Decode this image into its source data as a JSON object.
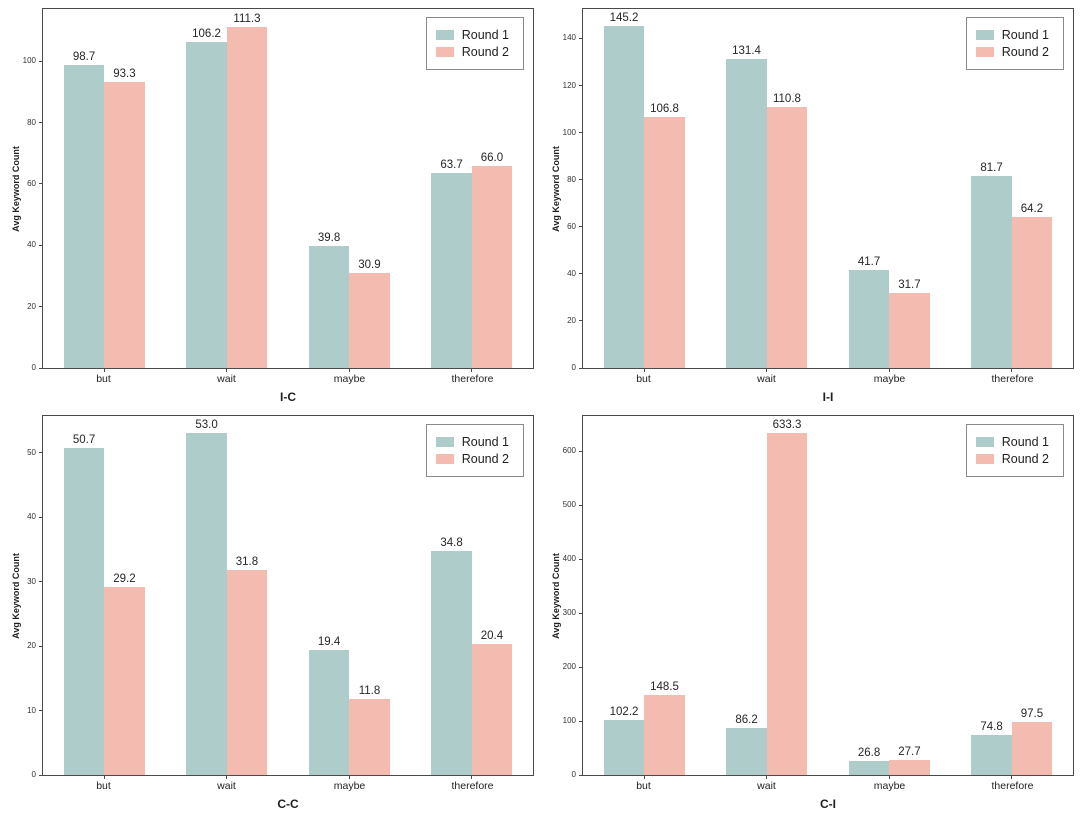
{
  "figure": {
    "type": "grouped-bar-grid",
    "rows": 2,
    "cols": 2
  },
  "colors": {
    "round1": "#aeccc9",
    "round2": "#f4bcb1",
    "spine": "#4a4a4a",
    "text": "#1f1f1f"
  },
  "legend": {
    "position": "upper right",
    "items": [
      {
        "label": "Round 1",
        "color": "#aeccc9"
      },
      {
        "label": "Round 2",
        "color": "#f4bcb1"
      }
    ]
  },
  "chart_data": [
    {
      "type": "bar",
      "title": "I-C",
      "ylabel": "Avg Keyword Count",
      "categories": [
        "but",
        "wait",
        "maybe",
        "therefore"
      ],
      "series": [
        {
          "name": "Round 1",
          "values": [
            98.7,
            106.2,
            39.8,
            63.7
          ],
          "value_labels": [
            "98.7",
            "106.2",
            "39.8",
            "63.7"
          ]
        },
        {
          "name": "Round 2",
          "values": [
            93.3,
            111.3,
            30.9,
            66.0
          ],
          "value_labels": [
            "93.3",
            "111.3",
            "30.9",
            "66.0"
          ]
        }
      ],
      "yticks": [
        0,
        20,
        40,
        60,
        80,
        100
      ],
      "ylim": [
        0,
        117
      ],
      "grid": false,
      "legend_position": "upper right"
    },
    {
      "type": "bar",
      "title": "I-I",
      "ylabel": "Avg Keyword Count",
      "categories": [
        "but",
        "wait",
        "maybe",
        "therefore"
      ],
      "series": [
        {
          "name": "Round 1",
          "values": [
            145.2,
            131.4,
            41.7,
            81.7
          ],
          "value_labels": [
            "145.2",
            "131.4",
            "41.7",
            "81.7"
          ]
        },
        {
          "name": "Round 2",
          "values": [
            106.8,
            110.8,
            31.7,
            64.2
          ],
          "value_labels": [
            "106.8",
            "110.8",
            "31.7",
            "64.2"
          ]
        }
      ],
      "yticks": [
        0,
        20,
        40,
        60,
        80,
        100,
        120,
        140
      ],
      "ylim": [
        0,
        152.5
      ],
      "grid": false,
      "legend_position": "upper right"
    },
    {
      "type": "bar",
      "title": "C-C",
      "ylabel": "Avg Keyword Count",
      "categories": [
        "but",
        "wait",
        "maybe",
        "therefore"
      ],
      "series": [
        {
          "name": "Round 1",
          "values": [
            50.7,
            53.0,
            19.4,
            34.8
          ],
          "value_labels": [
            "50.7",
            "53.0",
            "19.4",
            "34.8"
          ]
        },
        {
          "name": "Round 2",
          "values": [
            29.2,
            31.8,
            11.8,
            20.4
          ],
          "value_labels": [
            "29.2",
            "31.8",
            "11.8",
            "20.4"
          ]
        }
      ],
      "yticks": [
        0,
        10,
        20,
        30,
        40,
        50
      ],
      "ylim": [
        0,
        55.7
      ],
      "grid": false,
      "legend_position": "upper right"
    },
    {
      "type": "bar",
      "title": "C-I",
      "ylabel": "Avg Keyword Count",
      "categories": [
        "but",
        "wait",
        "maybe",
        "therefore"
      ],
      "series": [
        {
          "name": "Round 1",
          "values": [
            102.2,
            86.2,
            26.8,
            74.8
          ],
          "value_labels": [
            "102.2",
            "86.2",
            "26.8",
            "74.8"
          ]
        },
        {
          "name": "Round 2",
          "values": [
            148.5,
            633.3,
            27.7,
            97.5
          ],
          "value_labels": [
            "148.5",
            "633.3",
            "27.7",
            "97.5"
          ]
        }
      ],
      "yticks": [
        0,
        100,
        200,
        300,
        400,
        500,
        600
      ],
      "ylim": [
        0,
        665
      ],
      "grid": false,
      "legend_position": "upper right"
    }
  ]
}
